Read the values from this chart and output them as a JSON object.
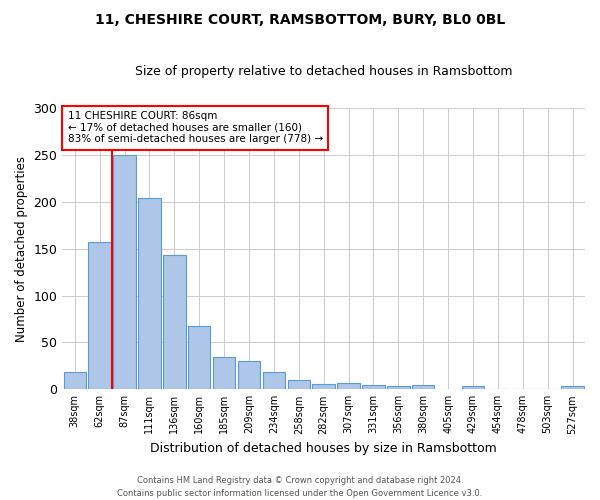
{
  "title_line1": "11, CHESHIRE COURT, RAMSBOTTOM, BURY, BL0 0BL",
  "title_line2": "Size of property relative to detached houses in Ramsbottom",
  "xlabel": "Distribution of detached houses by size in Ramsbottom",
  "ylabel": "Number of detached properties",
  "categories": [
    "38sqm",
    "62sqm",
    "87sqm",
    "111sqm",
    "136sqm",
    "160sqm",
    "185sqm",
    "209sqm",
    "234sqm",
    "258sqm",
    "282sqm",
    "307sqm",
    "331sqm",
    "356sqm",
    "380sqm",
    "405sqm",
    "429sqm",
    "454sqm",
    "478sqm",
    "503sqm",
    "527sqm"
  ],
  "values": [
    18,
    157,
    250,
    204,
    143,
    68,
    35,
    30,
    18,
    10,
    6,
    7,
    5,
    4,
    5,
    0,
    3,
    0,
    0,
    0,
    3
  ],
  "bar_color": "#aec6e8",
  "bar_edge_color": "#5b9bd5",
  "line_color": "red",
  "smaller_pct": 17,
  "smaller_count": 160,
  "larger_pct": 83,
  "larger_count": 778,
  "footnote_line1": "Contains HM Land Registry data © Crown copyright and database right 2024.",
  "footnote_line2": "Contains public sector information licensed under the Open Government Licence v3.0.",
  "ylim": [
    0,
    300
  ],
  "yticks": [
    0,
    50,
    100,
    150,
    200,
    250,
    300
  ],
  "n_bins": 21,
  "property_sqm": 86,
  "property_bin_index": 2
}
